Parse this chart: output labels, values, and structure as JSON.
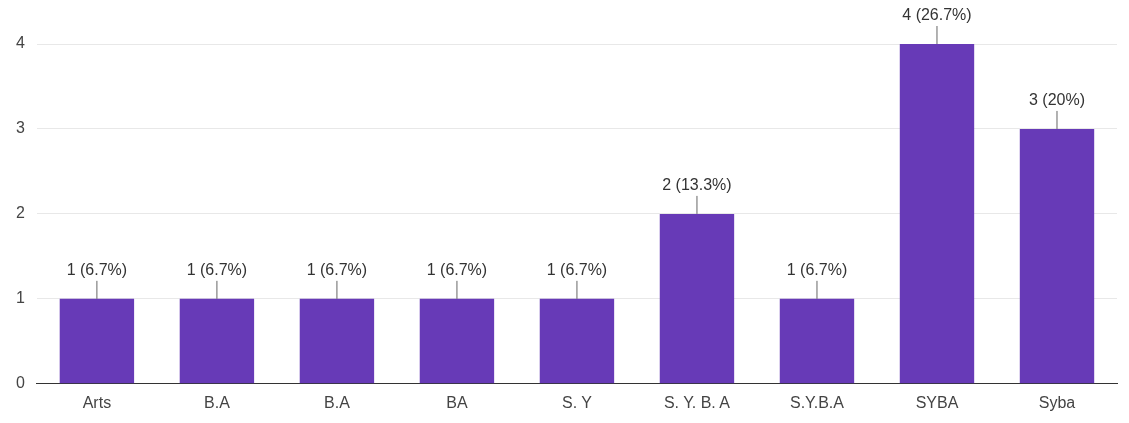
{
  "chart_data": {
    "type": "bar",
    "categories": [
      "Arts",
      "B.A",
      "B.A",
      "BA",
      "S. Y",
      "S. Y. B. A",
      "S.Y.B.A",
      "SYBA",
      "Syba"
    ],
    "values": [
      1,
      1,
      1,
      1,
      1,
      2,
      1,
      4,
      3
    ],
    "value_labels": [
      "1 (6.7%)",
      "1 (6.7%)",
      "1 (6.7%)",
      "1 (6.7%)",
      "1 (6.7%)",
      "2 (13.3%)",
      "1 (6.7%)",
      "4 (26.7%)",
      "3 (20%)"
    ],
    "color": "#673ab7",
    "ylim": [
      0,
      4
    ],
    "yticks": [
      0,
      1,
      2,
      3,
      4
    ],
    "grid": "y",
    "legend": false
  }
}
